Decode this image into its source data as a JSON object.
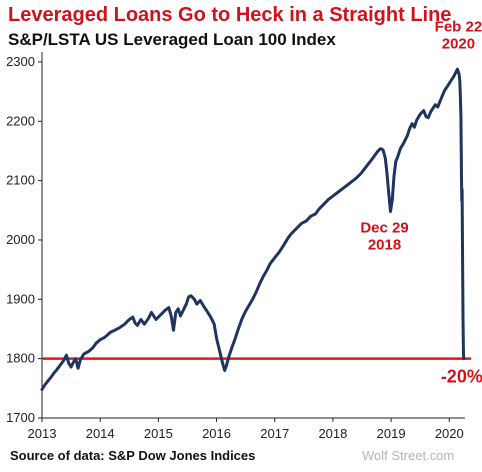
{
  "chart_data": {
    "type": "line",
    "title": "Leveraged Loans Go to Heck in a Straight Line",
    "subtitle": "S&P/LSTA US Leveraged Loan 100 Index",
    "source": "Source of data: S&P Dow Jones Indices",
    "watermark": "Wolf Street.com",
    "xlabel": "",
    "ylabel": "",
    "xlim": [
      2013.0,
      2020.27
    ],
    "ylim": [
      1700,
      2310
    ],
    "x_ticks": [
      2013,
      2014,
      2015,
      2016,
      2017,
      2018,
      2019,
      2020
    ],
    "y_ticks": [
      1700,
      1800,
      1900,
      2000,
      2100,
      2200,
      2300
    ],
    "grid": false,
    "reference_line": {
      "y": 1800,
      "color": "#e8141b"
    },
    "annotations": [
      {
        "lines": [
          "Feb 22",
          "2020"
        ],
        "x": 2020.14,
        "y": 2287
      },
      {
        "lines": [
          "Dec 29",
          "2018"
        ],
        "x": 2018.99,
        "y": 2048
      },
      {
        "lines": [
          "-20%"
        ],
        "x": 2020.25,
        "y": 1800
      }
    ],
    "series": [
      {
        "color": "#1f3560",
        "points": [
          [
            2013.0,
            1748
          ],
          [
            2013.05,
            1756
          ],
          [
            2013.1,
            1762
          ],
          [
            2013.15,
            1768
          ],
          [
            2013.2,
            1775
          ],
          [
            2013.26,
            1782
          ],
          [
            2013.32,
            1790
          ],
          [
            2013.38,
            1798
          ],
          [
            2013.42,
            1806
          ],
          [
            2013.46,
            1792
          ],
          [
            2013.5,
            1786
          ],
          [
            2013.54,
            1794
          ],
          [
            2013.58,
            1800
          ],
          [
            2013.62,
            1784
          ],
          [
            2013.66,
            1798
          ],
          [
            2013.72,
            1808
          ],
          [
            2013.8,
            1812
          ],
          [
            2013.87,
            1818
          ],
          [
            2013.93,
            1826
          ],
          [
            2014.0,
            1832
          ],
          [
            2014.08,
            1836
          ],
          [
            2014.17,
            1844
          ],
          [
            2014.25,
            1848
          ],
          [
            2014.33,
            1852
          ],
          [
            2014.42,
            1858
          ],
          [
            2014.5,
            1866
          ],
          [
            2014.56,
            1870
          ],
          [
            2014.6,
            1860
          ],
          [
            2014.64,
            1856
          ],
          [
            2014.7,
            1866
          ],
          [
            2014.76,
            1858
          ],
          [
            2014.83,
            1868
          ],
          [
            2014.88,
            1878
          ],
          [
            2014.92,
            1872
          ],
          [
            2014.96,
            1866
          ],
          [
            2015.0,
            1870
          ],
          [
            2015.06,
            1876
          ],
          [
            2015.12,
            1882
          ],
          [
            2015.18,
            1886
          ],
          [
            2015.22,
            1872
          ],
          [
            2015.26,
            1848
          ],
          [
            2015.3,
            1878
          ],
          [
            2015.34,
            1884
          ],
          [
            2015.38,
            1872
          ],
          [
            2015.42,
            1880
          ],
          [
            2015.48,
            1892
          ],
          [
            2015.52,
            1904
          ],
          [
            2015.56,
            1906
          ],
          [
            2015.62,
            1900
          ],
          [
            2015.66,
            1892
          ],
          [
            2015.72,
            1898
          ],
          [
            2015.78,
            1888
          ],
          [
            2015.85,
            1878
          ],
          [
            2015.9,
            1870
          ],
          [
            2015.96,
            1858
          ],
          [
            2016.0,
            1834
          ],
          [
            2016.04,
            1818
          ],
          [
            2016.08,
            1802
          ],
          [
            2016.11,
            1790
          ],
          [
            2016.14,
            1780
          ],
          [
            2016.17,
            1788
          ],
          [
            2016.2,
            1800
          ],
          [
            2016.26,
            1818
          ],
          [
            2016.32,
            1834
          ],
          [
            2016.38,
            1852
          ],
          [
            2016.44,
            1868
          ],
          [
            2016.5,
            1880
          ],
          [
            2016.56,
            1890
          ],
          [
            2016.62,
            1900
          ],
          [
            2016.68,
            1912
          ],
          [
            2016.74,
            1926
          ],
          [
            2016.8,
            1938
          ],
          [
            2016.86,
            1948
          ],
          [
            2016.92,
            1960
          ],
          [
            2017.0,
            1970
          ],
          [
            2017.08,
            1980
          ],
          [
            2017.16,
            1992
          ],
          [
            2017.22,
            2002
          ],
          [
            2017.28,
            2010
          ],
          [
            2017.34,
            2016
          ],
          [
            2017.4,
            2022
          ],
          [
            2017.46,
            2028
          ],
          [
            2017.54,
            2032
          ],
          [
            2017.62,
            2040
          ],
          [
            2017.7,
            2044
          ],
          [
            2017.76,
            2052
          ],
          [
            2017.84,
            2060
          ],
          [
            2017.92,
            2068
          ],
          [
            2018.0,
            2074
          ],
          [
            2018.08,
            2080
          ],
          [
            2018.16,
            2086
          ],
          [
            2018.24,
            2092
          ],
          [
            2018.32,
            2098
          ],
          [
            2018.4,
            2104
          ],
          [
            2018.48,
            2112
          ],
          [
            2018.56,
            2122
          ],
          [
            2018.64,
            2132
          ],
          [
            2018.7,
            2140
          ],
          [
            2018.76,
            2148
          ],
          [
            2018.82,
            2154
          ],
          [
            2018.86,
            2152
          ],
          [
            2018.9,
            2138
          ],
          [
            2018.93,
            2112
          ],
          [
            2018.96,
            2078
          ],
          [
            2018.99,
            2048
          ],
          [
            2019.02,
            2068
          ],
          [
            2019.05,
            2108
          ],
          [
            2019.08,
            2132
          ],
          [
            2019.12,
            2142
          ],
          [
            2019.16,
            2154
          ],
          [
            2019.22,
            2164
          ],
          [
            2019.28,
            2176
          ],
          [
            2019.32,
            2188
          ],
          [
            2019.36,
            2196
          ],
          [
            2019.4,
            2190
          ],
          [
            2019.44,
            2202
          ],
          [
            2019.5,
            2212
          ],
          [
            2019.56,
            2218
          ],
          [
            2019.6,
            2208
          ],
          [
            2019.64,
            2206
          ],
          [
            2019.68,
            2216
          ],
          [
            2019.72,
            2222
          ],
          [
            2019.76,
            2228
          ],
          [
            2019.8,
            2224
          ],
          [
            2019.86,
            2238
          ],
          [
            2019.92,
            2252
          ],
          [
            2019.96,
            2258
          ],
          [
            2020.0,
            2264
          ],
          [
            2020.04,
            2270
          ],
          [
            2020.08,
            2276
          ],
          [
            2020.12,
            2284
          ],
          [
            2020.14,
            2288
          ],
          [
            2020.16,
            2282
          ],
          [
            2020.17,
            2278
          ],
          [
            2020.18,
            2268
          ],
          [
            2020.19,
            2245
          ],
          [
            2020.2,
            2210
          ],
          [
            2020.205,
            2160
          ],
          [
            2020.21,
            2102
          ],
          [
            2020.215,
            2066
          ],
          [
            2020.22,
            2085
          ],
          [
            2020.225,
            2010
          ],
          [
            2020.23,
            1938
          ],
          [
            2020.235,
            1872
          ],
          [
            2020.24,
            1830
          ],
          [
            2020.245,
            1808
          ],
          [
            2020.25,
            1800
          ]
        ]
      }
    ]
  }
}
